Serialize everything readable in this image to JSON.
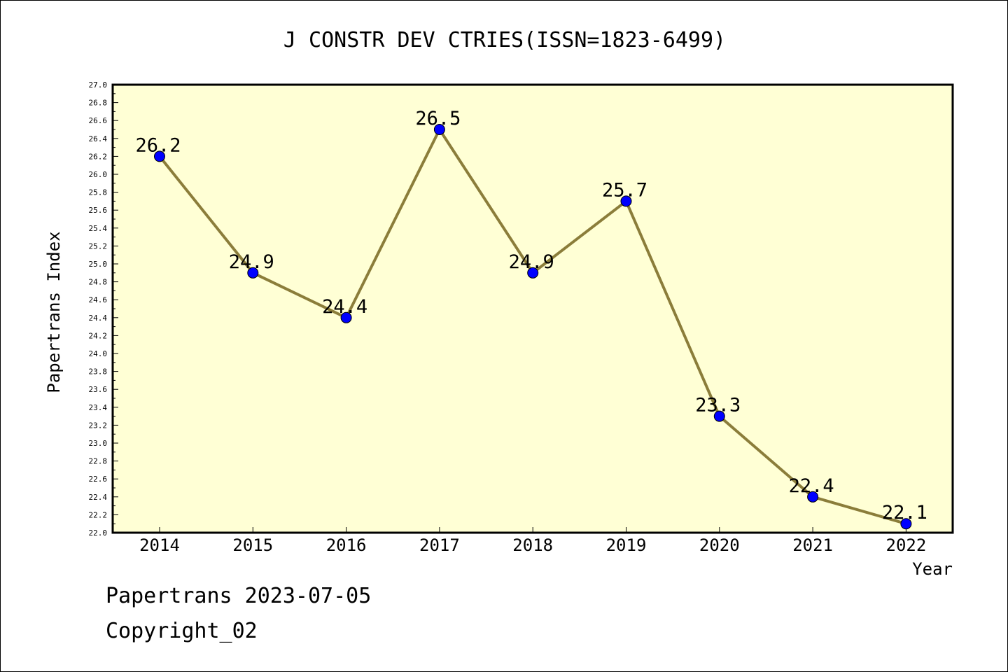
{
  "chart_data": {
    "type": "line",
    "title": "J CONSTR DEV CTRIES(ISSN=1823-6499)",
    "xlabel": "Year",
    "ylabel": "Papertrans Index",
    "categories": [
      "2014",
      "2015",
      "2016",
      "2017",
      "2018",
      "2019",
      "2020",
      "2021",
      "2022"
    ],
    "series": [
      {
        "values": [
          26.2,
          24.9,
          24.4,
          26.5,
          24.9,
          25.7,
          23.3,
          22.4,
          22.1
        ],
        "data_labels": [
          "26.2",
          "24.9",
          "24.4",
          "26.5",
          "24.9",
          "25.7",
          "23.3",
          "22.4",
          "22.1"
        ]
      }
    ],
    "ylim": [
      22.0,
      27.0
    ],
    "y_ticks": [
      "22.0",
      "22.2",
      "22.4",
      "22.6",
      "22.8",
      "23.0",
      "23.2",
      "23.4",
      "23.6",
      "23.8",
      "24.0",
      "24.2",
      "24.4",
      "24.6",
      "24.8",
      "25.0",
      "25.2",
      "25.4",
      "25.6",
      "25.8",
      "26.0",
      "26.2",
      "26.4",
      "26.6",
      "26.8",
      "27.0"
    ],
    "grid": false,
    "colors": {
      "plot_background": "#ffffd5",
      "line": "#8b7d3a",
      "marker": "#0000ff"
    }
  },
  "footer": {
    "line1": "Papertrans 2023-07-05",
    "line2": "Copyright_02"
  }
}
